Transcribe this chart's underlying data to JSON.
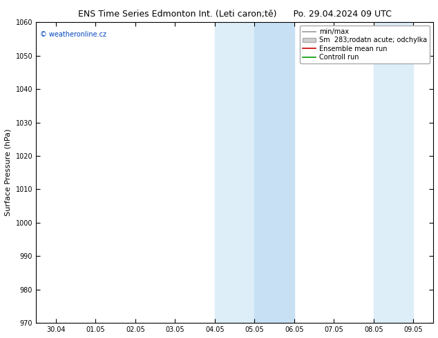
{
  "title_left": "ENS Time Series Edmonton Int. (Leti caron;tě)",
  "title_right": "Po. 29.04.2024 09 UTC",
  "ylabel": "Surface Pressure (hPa)",
  "ylim": [
    970,
    1060
  ],
  "yticks": [
    970,
    980,
    990,
    1000,
    1010,
    1020,
    1030,
    1040,
    1050,
    1060
  ],
  "xtick_labels": [
    "30.04",
    "01.05",
    "02.05",
    "03.05",
    "04.05",
    "05.05",
    "06.05",
    "07.05",
    "08.05",
    "09.05"
  ],
  "xtick_positions": [
    0,
    1,
    2,
    3,
    4,
    5,
    6,
    7,
    8,
    9
  ],
  "xlim": [
    -0.5,
    9.5
  ],
  "shaded_bands": [
    {
      "x_start": 4.0,
      "x_end": 5.0,
      "color": "#ddeef9"
    },
    {
      "x_start": 5.0,
      "x_end": 6.0,
      "color": "#c8e0f4"
    },
    {
      "x_start": 8.0,
      "x_end": 9.0,
      "color": "#ddeef9"
    }
  ],
  "copyright_text": "© weatheronline.cz",
  "legend_items": [
    {
      "label": "min/max",
      "type": "line",
      "color": "#999999",
      "linewidth": 1.2
    },
    {
      "label": "Sm  283;rodatn acute; odchylka",
      "type": "patch",
      "color": "#d0d0d0"
    },
    {
      "label": "Ensemble mean run",
      "type": "line",
      "color": "#cc0000",
      "linewidth": 1.2
    },
    {
      "label": "Controll run",
      "type": "line",
      "color": "#009900",
      "linewidth": 1.2
    }
  ],
  "bg_color": "#ffffff",
  "title_fontsize": 9,
  "ylabel_fontsize": 8,
  "tick_fontsize": 7,
  "legend_fontsize": 7,
  "copyright_fontsize": 7,
  "copyright_color": "#0044bb"
}
